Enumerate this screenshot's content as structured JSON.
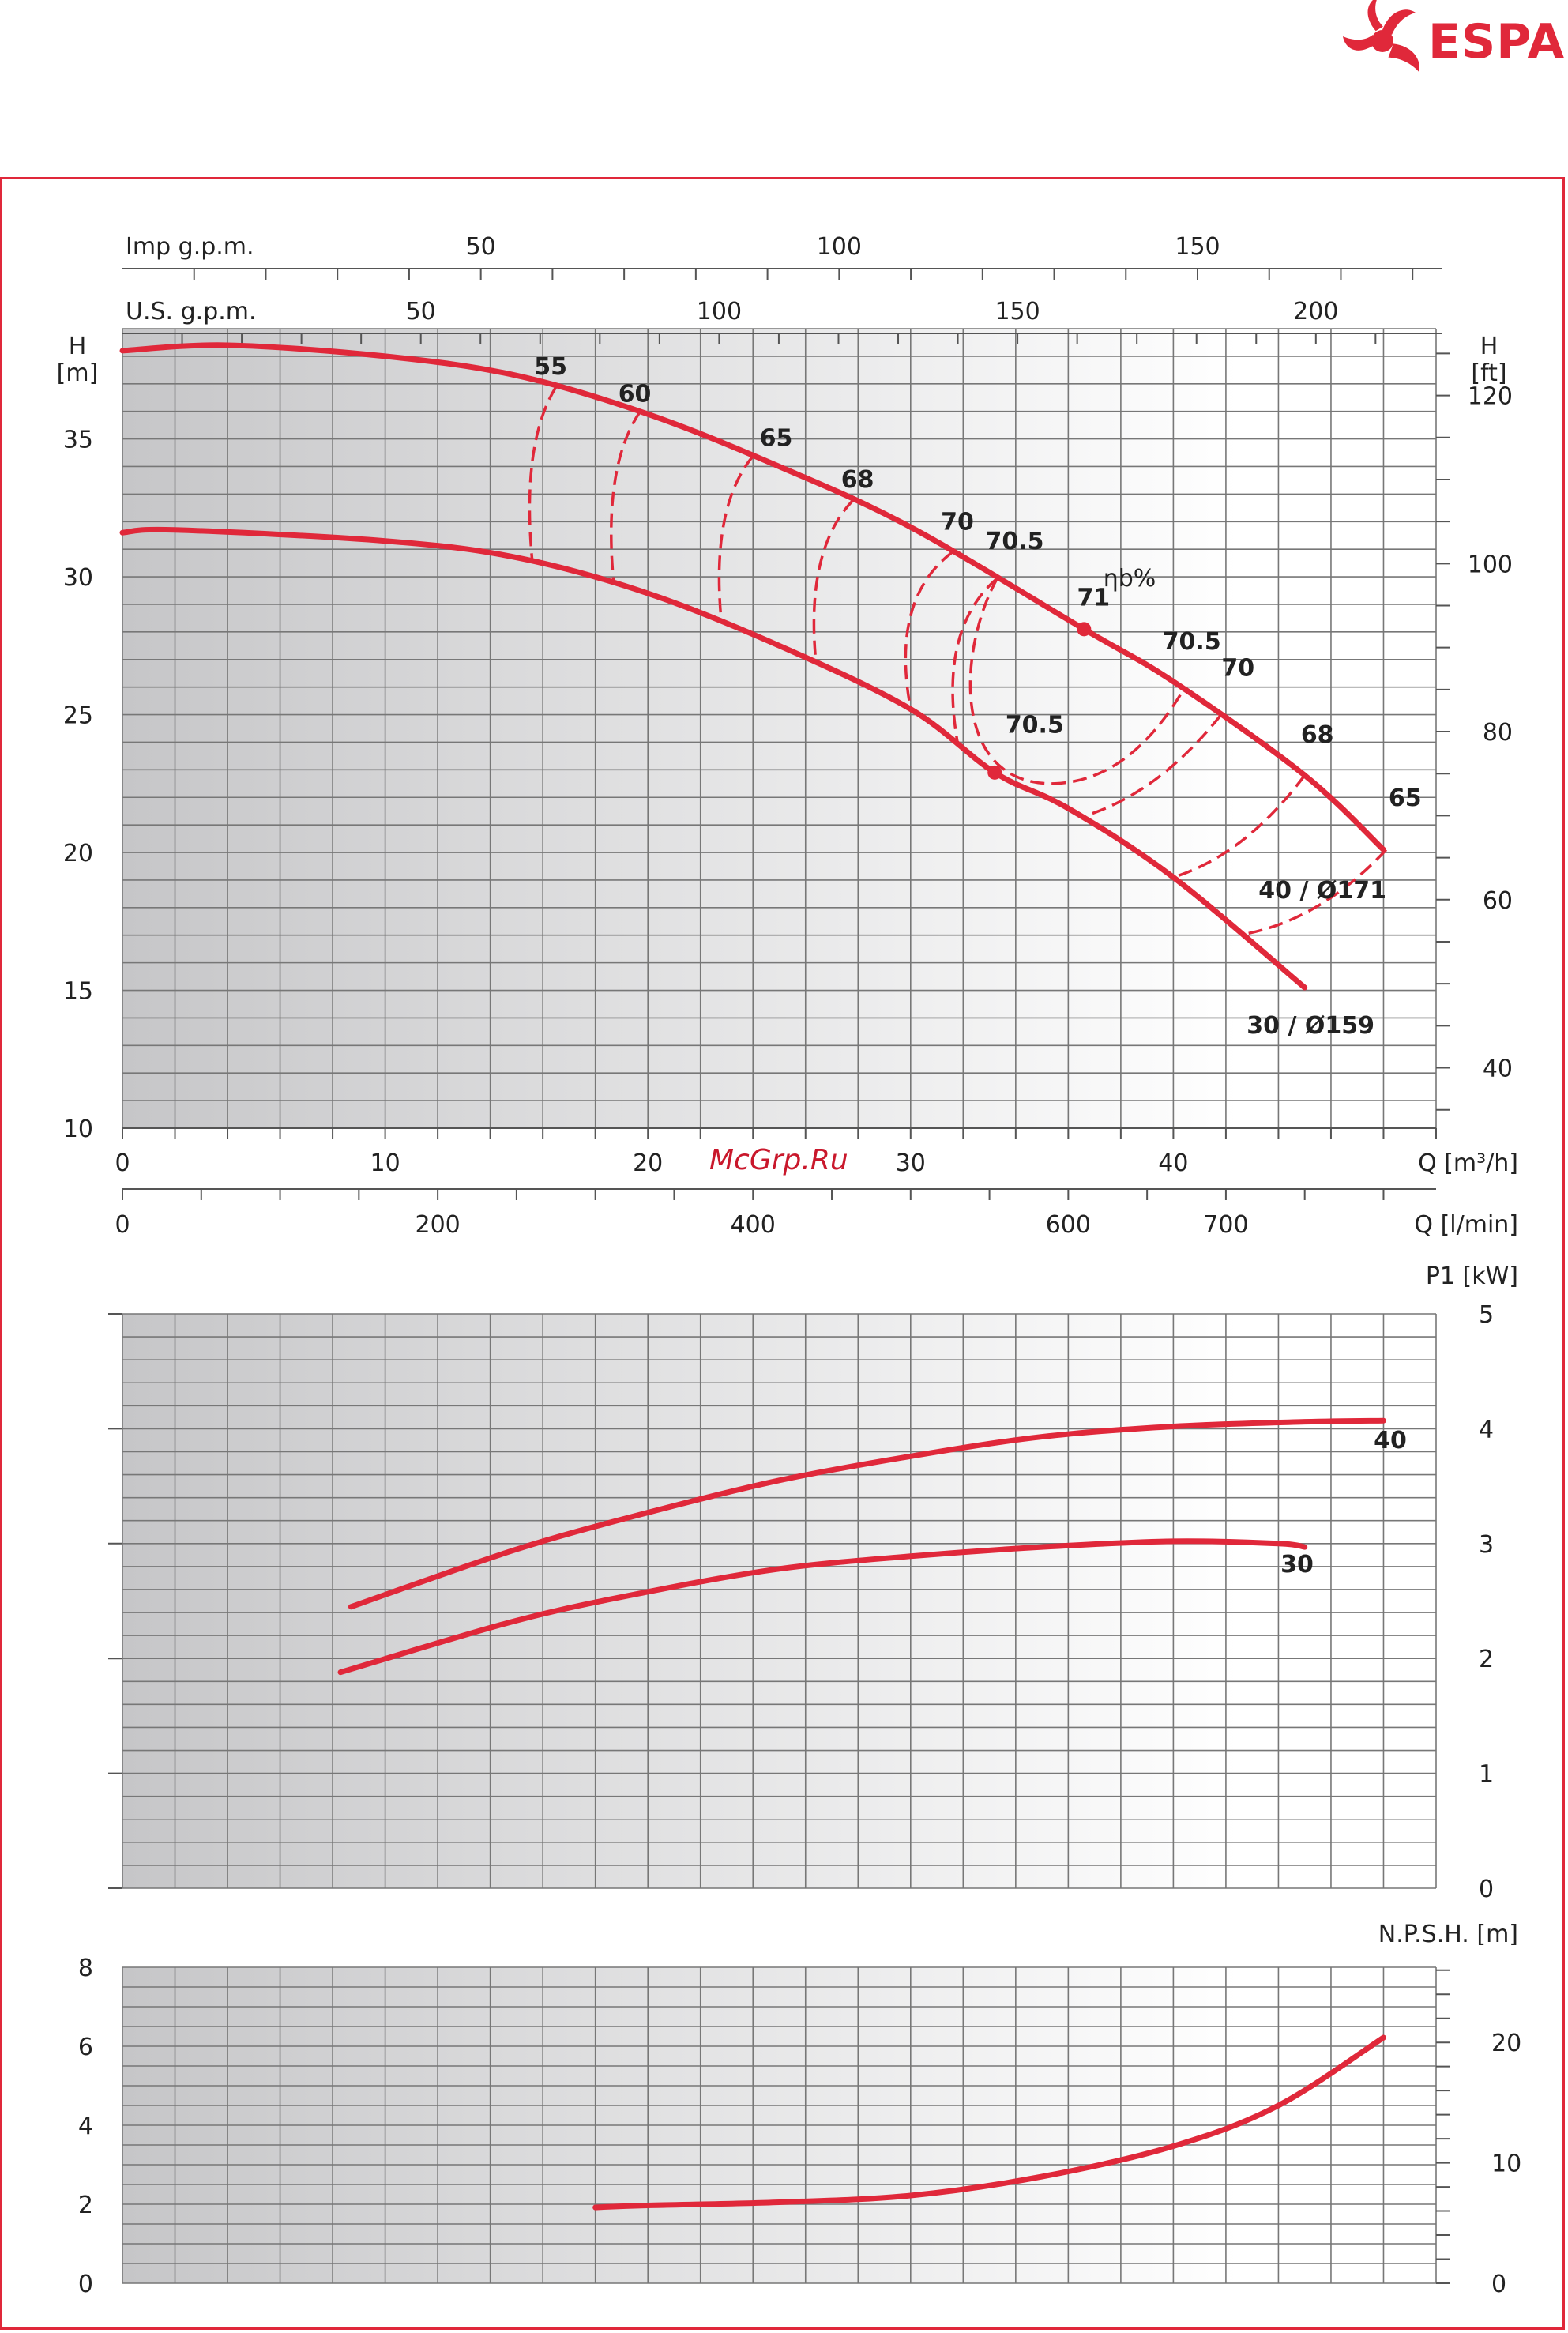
{
  "brand": {
    "name": "ESPA",
    "color": "#e0283a"
  },
  "watermark": "McGrp.Ru",
  "colors": {
    "curve": "#e0283a",
    "grid": "#777777",
    "shade_dark": "#c8c8ca",
    "shade_light": "#ffffff"
  },
  "chart_data": [
    {
      "type": "line",
      "id": "head",
      "title": "",
      "xlabel": "Q [m³/h]",
      "ylabel_left": "H\n[m]",
      "ylabel_right": "H\n[ft]",
      "xlim": [
        0,
        50
      ],
      "ylim": [
        10,
        39
      ],
      "x_ticks": [
        0,
        10,
        20,
        30,
        40
      ],
      "y_ticks_left": [
        10,
        15,
        20,
        25,
        30,
        35
      ],
      "y_ticks_right": [
        40,
        60,
        80,
        100,
        120
      ],
      "secondary_x_axes": [
        {
          "label": "Imp g.p.m.",
          "ticks": [
            50,
            100,
            150
          ]
        },
        {
          "label": "U.S. g.p.m.",
          "ticks": [
            50,
            100,
            150,
            200
          ]
        },
        {
          "label": "Q [l/min]",
          "ticks": [
            0,
            200,
            400,
            600,
            700
          ]
        }
      ],
      "series": [
        {
          "name": "40 / Ø171",
          "x": [
            0,
            4,
            10,
            15,
            20,
            25,
            30,
            36.6,
            40,
            45,
            48
          ],
          "y": [
            38.2,
            38.4,
            38.0,
            37.3,
            35.9,
            34.0,
            31.8,
            28.1,
            26.2,
            22.8,
            20.1
          ]
        },
        {
          "name": "30 / Ø159",
          "x": [
            0,
            2,
            10,
            15,
            20,
            25,
            30,
            33.2,
            36,
            40,
            45
          ],
          "y": [
            31.6,
            31.7,
            31.3,
            30.7,
            29.4,
            27.5,
            25.2,
            22.9,
            21.6,
            19.1,
            15.1
          ]
        }
      ],
      "efficiency_title": "ηb%",
      "efficiency_labels": [
        {
          "text": "55",
          "x": 16.3,
          "y": 37.0
        },
        {
          "text": "60",
          "x": 19.5,
          "y": 36.0
        },
        {
          "text": "65",
          "x": 24.7,
          "y": 34.4
        },
        {
          "text": "68",
          "x": 27.8,
          "y": 32.9
        },
        {
          "text": "70",
          "x": 31.6,
          "y": 31.3
        },
        {
          "text": "70.5",
          "x": 33.3,
          "y": 30.6
        },
        {
          "text": "71",
          "x": 36.6,
          "y": 28.1
        },
        {
          "text": "70.5",
          "x": 40.4,
          "y": 26.5
        },
        {
          "text": "70",
          "x": 41.8,
          "y": 25.6
        },
        {
          "text": "68",
          "x": 45.0,
          "y": 23.3
        },
        {
          "text": "65",
          "x": 48.1,
          "y": 21.0
        },
        {
          "text": "70.5",
          "x": 34.0,
          "y": 23.6
        }
      ],
      "efficiency_labels_xy_note": "",
      "bep_points": [
        {
          "x": 36.6,
          "y": 28.1
        },
        {
          "x": 33.2,
          "y": 22.9
        }
      ]
    },
    {
      "type": "line",
      "id": "power",
      "ylabel_right": "P1 [kW]",
      "xlim": [
        0,
        50
      ],
      "ylim": [
        0,
        5
      ],
      "y_ticks_right": [
        0,
        1,
        2,
        3,
        4,
        5
      ],
      "series": [
        {
          "name": "40",
          "x": [
            8.7,
            15,
            20,
            25,
            30,
            35,
            40,
            45,
            48
          ],
          "y": [
            2.45,
            2.95,
            3.27,
            3.55,
            3.76,
            3.93,
            4.02,
            4.06,
            4.07
          ]
        },
        {
          "name": "30",
          "x": [
            8.3,
            15,
            20,
            25,
            30,
            35,
            40,
            44,
            45
          ],
          "y": [
            1.88,
            2.33,
            2.58,
            2.78,
            2.89,
            2.97,
            3.02,
            3.0,
            2.97
          ]
        }
      ]
    },
    {
      "type": "line",
      "id": "npsh",
      "ylabel_right": "N.P.S.H. [m]",
      "xlim": [
        0,
        50
      ],
      "ylim": [
        0,
        8
      ],
      "y_ticks_left": [
        0,
        2,
        4,
        6,
        8
      ],
      "y_ticks_right": [
        0,
        10,
        20
      ],
      "series": [
        {
          "name": "",
          "x": [
            18,
            20,
            25,
            30,
            35,
            40,
            44,
            48
          ],
          "y": [
            1.92,
            1.97,
            2.05,
            2.22,
            2.7,
            3.47,
            4.5,
            6.22
          ]
        }
      ]
    }
  ]
}
